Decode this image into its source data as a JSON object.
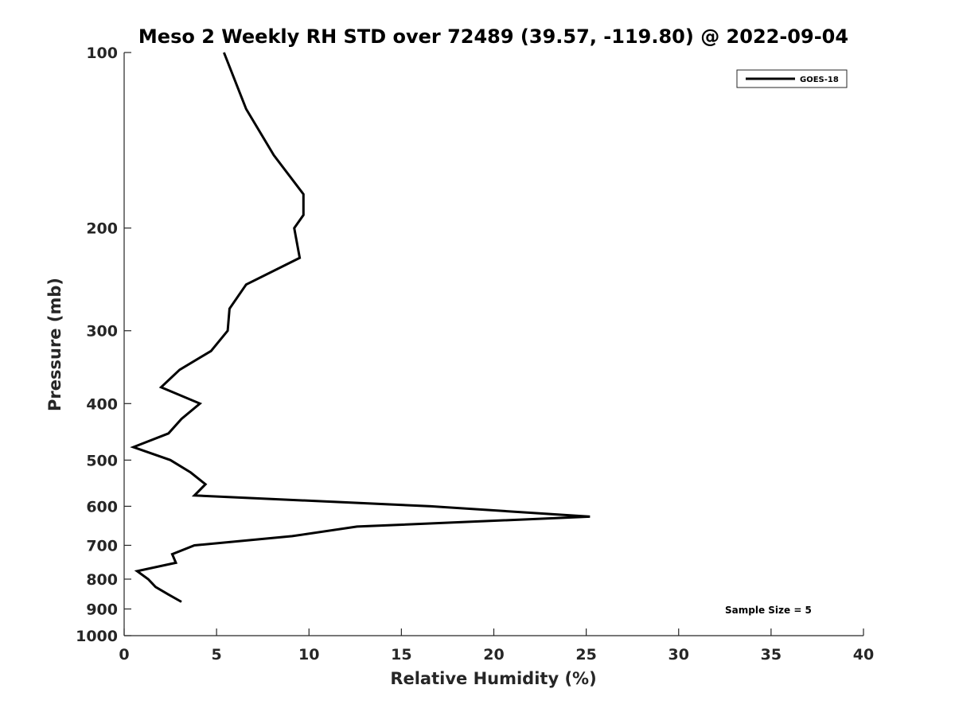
{
  "chart_data": {
    "type": "line",
    "title": "Meso 2 Weekly RH STD over 72489 (39.57, -119.80) @ 2022-09-04",
    "xlabel": "Relative Humidity (%)",
    "ylabel": "Pressure (mb)",
    "xlim": [
      0,
      40
    ],
    "ylim": [
      100,
      1000
    ],
    "y_scale": "log",
    "y_reversed": true,
    "x_ticks": [
      "0",
      "5",
      "10",
      "15",
      "20",
      "25",
      "30",
      "35",
      "40"
    ],
    "y_ticks": [
      "100",
      "200",
      "300",
      "400",
      "500",
      "600",
      "700",
      "800",
      "900",
      "1000"
    ],
    "grid": false,
    "legend_position": "top-right",
    "annotation": "Sample Size = 5",
    "series": [
      {
        "name": "GOES-18",
        "color": "#000000",
        "points": [
          {
            "x": 5.4,
            "y": 100
          },
          {
            "x": 6.6,
            "y": 125
          },
          {
            "x": 8.1,
            "y": 150
          },
          {
            "x": 9.7,
            "y": 175
          },
          {
            "x": 9.7,
            "y": 190
          },
          {
            "x": 9.2,
            "y": 200
          },
          {
            "x": 9.5,
            "y": 225
          },
          {
            "x": 6.6,
            "y": 250
          },
          {
            "x": 5.7,
            "y": 275
          },
          {
            "x": 5.6,
            "y": 300
          },
          {
            "x": 4.7,
            "y": 325
          },
          {
            "x": 3.0,
            "y": 350
          },
          {
            "x": 2.0,
            "y": 375
          },
          {
            "x": 4.1,
            "y": 400
          },
          {
            "x": 3.1,
            "y": 425
          },
          {
            "x": 2.4,
            "y": 450
          },
          {
            "x": 0.5,
            "y": 475
          },
          {
            "x": 2.5,
            "y": 500
          },
          {
            "x": 3.6,
            "y": 525
          },
          {
            "x": 4.4,
            "y": 550
          },
          {
            "x": 3.8,
            "y": 575
          },
          {
            "x": 16.6,
            "y": 600
          },
          {
            "x": 25.2,
            "y": 625
          },
          {
            "x": 12.6,
            "y": 650
          },
          {
            "x": 9.1,
            "y": 675
          },
          {
            "x": 3.8,
            "y": 700
          },
          {
            "x": 2.6,
            "y": 725
          },
          {
            "x": 2.8,
            "y": 750
          },
          {
            "x": 0.7,
            "y": 775
          },
          {
            "x": 1.3,
            "y": 800
          },
          {
            "x": 1.7,
            "y": 825
          },
          {
            "x": 2.4,
            "y": 850
          },
          {
            "x": 3.1,
            "y": 875
          }
        ]
      }
    ]
  }
}
